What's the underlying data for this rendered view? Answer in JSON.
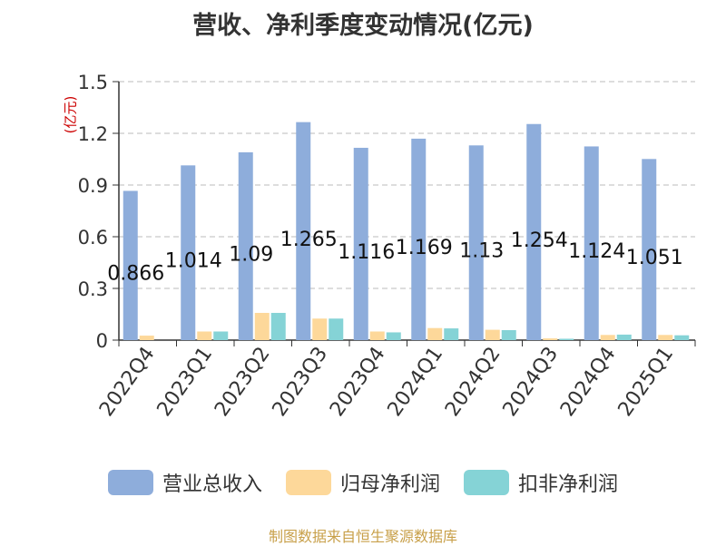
{
  "chart_data": {
    "type": "bar",
    "title": "营收、净利季度变动情况(亿元)",
    "unit_label": "(亿元)",
    "categories": [
      "2022Q4",
      "2023Q1",
      "2023Q2",
      "2023Q3",
      "2023Q4",
      "2024Q1",
      "2024Q2",
      "2024Q3",
      "2024Q4",
      "2025Q1"
    ],
    "series": [
      {
        "name": "营业总收入",
        "color": "#8eaddb",
        "values": [
          0.866,
          1.014,
          1.09,
          1.265,
          1.116,
          1.169,
          1.13,
          1.254,
          1.124,
          1.051
        ],
        "data_labels": [
          "0.866",
          "1.014",
          "1.09",
          "1.265",
          "1.116",
          "1.169",
          "1.13",
          "1.254",
          "1.124",
          "1.051"
        ]
      },
      {
        "name": "归母净利润",
        "color": "#fdd89a",
        "values": [
          0.026,
          0.05,
          0.158,
          0.125,
          0.05,
          0.07,
          0.06,
          0.01,
          0.03,
          0.03
        ]
      },
      {
        "name": "扣非净利润",
        "color": "#85d3d6",
        "values": [
          0.0,
          0.05,
          0.158,
          0.125,
          0.045,
          0.068,
          0.058,
          0.008,
          0.032,
          0.028
        ]
      }
    ],
    "yticks": [
      "0",
      "0.3",
      "0.6",
      "0.9",
      "1.2",
      "1.5"
    ],
    "ylim": [
      0,
      1.5
    ],
    "grid": true,
    "legend_position": "bottom"
  },
  "source": "制图数据来自恒生聚源数据库"
}
